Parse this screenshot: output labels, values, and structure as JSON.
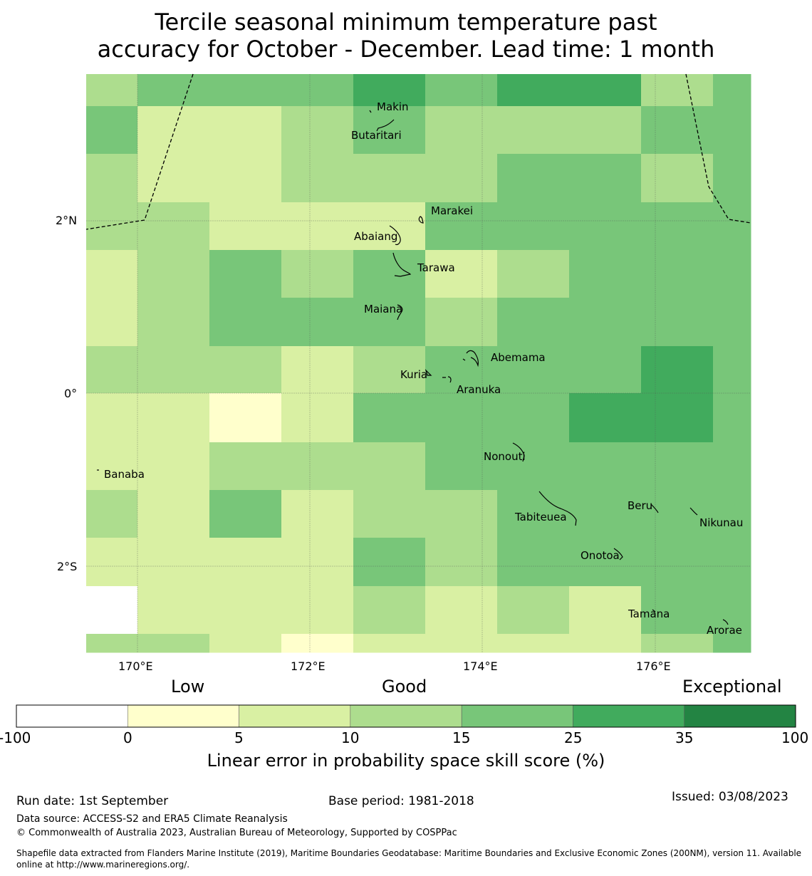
{
  "title": {
    "line1": "Tercile seasonal minimum temperature past",
    "line2": "accuracy for October - December. Lead time: 1 month"
  },
  "map": {
    "lon_ticks": [
      "170°E",
      "172°E",
      "174°E",
      "176°E"
    ],
    "lat_ticks": [
      "2°N",
      "0°",
      "2°S"
    ],
    "islands": [
      "Makin",
      "Butaritari",
      "Marakei",
      "Abaiang",
      "Tarawa",
      "Maiana",
      "Abemama",
      "Kuria",
      "Aranuka",
      "Nonouti",
      "Banaba",
      "Beru",
      "Tabiteuea",
      "Nikunau",
      "Onotoa",
      "Tamana",
      "Arorae"
    ],
    "grid_categories": [
      [
        3,
        4,
        4,
        4,
        5,
        4,
        5,
        5,
        3,
        4
      ],
      [
        4,
        2,
        2,
        3,
        4,
        3,
        3,
        3,
        4,
        4
      ],
      [
        3,
        2,
        2,
        3,
        3,
        3,
        4,
        4,
        3,
        4
      ],
      [
        3,
        3,
        2,
        2,
        2,
        4,
        4,
        4,
        4,
        4
      ],
      [
        2,
        3,
        4,
        3,
        4,
        2,
        3,
        4,
        4,
        4
      ],
      [
        2,
        3,
        4,
        4,
        4,
        3,
        4,
        4,
        4,
        4
      ],
      [
        3,
        3,
        3,
        2,
        3,
        4,
        4,
        4,
        5,
        4
      ],
      [
        2,
        2,
        1,
        2,
        4,
        4,
        4,
        5,
        5,
        4
      ],
      [
        2,
        2,
        3,
        3,
        3,
        4,
        4,
        4,
        4,
        4
      ],
      [
        3,
        2,
        4,
        2,
        3,
        3,
        4,
        4,
        4,
        4
      ],
      [
        2,
        2,
        2,
        2,
        4,
        3,
        4,
        4,
        4,
        4
      ],
      [
        0,
        2,
        2,
        2,
        3,
        2,
        3,
        2,
        4,
        4
      ],
      [
        3,
        3,
        2,
        1,
        2,
        2,
        2,
        2,
        3,
        4
      ]
    ],
    "land": "none"
  },
  "colorbar": {
    "category_labels": [
      "Low",
      "Good",
      "Exceptional"
    ],
    "ticks": [
      "-100",
      "0",
      "5",
      "10",
      "15",
      "25",
      "35",
      "100"
    ],
    "colors": [
      "#ffffff",
      "#ffffcc",
      "#d9f0a3",
      "#addd8e",
      "#78c679",
      "#41ab5d",
      "#238443"
    ],
    "label": "Linear error in probability space skill score (%)"
  },
  "footer": {
    "run_date": "Run date: 1st September",
    "base_period": "Base period: 1981-2018",
    "issued": "Issued: 03/08/2023",
    "data_source": "Data source: ACCESS-S2 and ERA5 Climate Reanalysis",
    "copyright": "© Commonwealth of Australia 2023, Australian Bureau of Meteorology, Supported by COSPPac",
    "shapefile_line1": "Shapefile data extracted from Flanders Marine Institute (2019), Maritime Boundaries Geodatabase: Maritime Boundaries and Exclusive Economic Zones (200NM), version 11. Available",
    "shapefile_line2": "online at http://www.marineregions.org/."
  }
}
